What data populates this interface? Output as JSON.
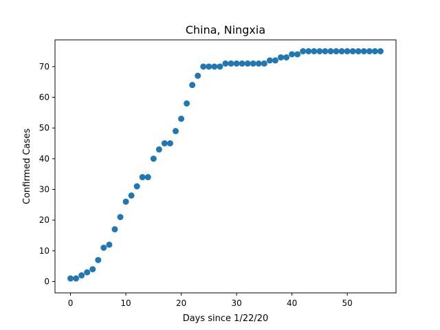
{
  "chart_data": {
    "type": "scatter",
    "title": "China, Ningxia",
    "xlabel": "Days since 1/22/20",
    "ylabel": "Confirmed Cases",
    "xlim": [
      -2.8,
      58.8
    ],
    "ylim": [
      -3.7,
      78.7
    ],
    "xticks": [
      0,
      10,
      20,
      30,
      40,
      50
    ],
    "yticks": [
      0,
      10,
      20,
      30,
      40,
      50,
      60,
      70
    ],
    "grid": false,
    "marker_color": "#1f77b4",
    "series": [
      {
        "x": [
          0,
          1,
          2,
          3,
          4,
          5,
          6,
          7,
          8,
          9,
          10,
          11,
          12,
          13,
          14,
          15,
          16,
          17,
          18,
          19,
          20,
          21,
          22,
          23,
          24,
          25,
          26,
          27,
          28,
          29,
          30,
          31,
          32,
          33,
          34,
          35,
          36,
          37,
          38,
          39,
          40,
          41,
          42,
          43,
          44,
          45,
          46,
          47,
          48,
          49,
          50,
          51,
          52,
          53,
          54,
          55,
          56
        ],
        "y": [
          1,
          1,
          2,
          3,
          4,
          7,
          11,
          12,
          17,
          21,
          26,
          28,
          31,
          34,
          34,
          40,
          43,
          45,
          45,
          49,
          53,
          58,
          64,
          67,
          70,
          70,
          70,
          70,
          71,
          71,
          71,
          71,
          71,
          71,
          71,
          71,
          72,
          72,
          73,
          73,
          74,
          74,
          75,
          75,
          75,
          75,
          75,
          75,
          75,
          75,
          75,
          75,
          75,
          75,
          75,
          75,
          75
        ]
      }
    ]
  }
}
